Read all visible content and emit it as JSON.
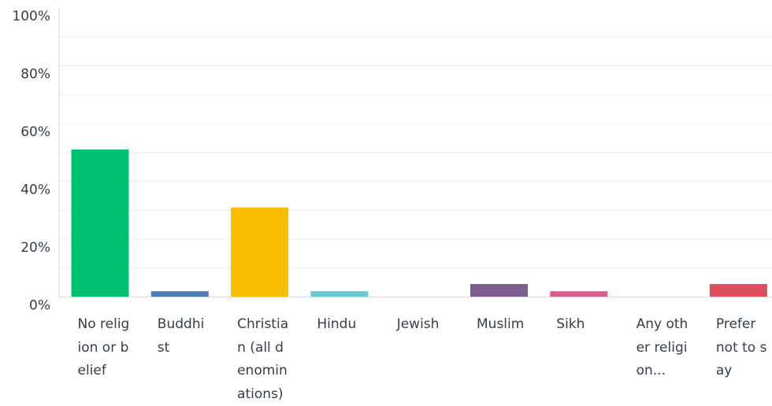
{
  "chart_data": {
    "type": "bar",
    "categories": [
      "No religion or belief",
      "Buddhist",
      "Christian (all denominations)",
      "Hindu",
      "Jewish",
      "Muslim",
      "Sikh",
      "Any other religion...",
      "Prefer not to say"
    ],
    "values": [
      51,
      2,
      31,
      2,
      0,
      4.5,
      2,
      0,
      4.5
    ],
    "colors": [
      "#00bf6f",
      "#507cb6",
      "#f9be00",
      "#6bc8cd",
      "#ff8b4f",
      "#7d5e90",
      "#d25f90",
      "#b4a08c",
      "#dd4f5e"
    ],
    "ylim": [
      0,
      100
    ],
    "yticks": [
      "0%",
      "20%",
      "40%",
      "60%",
      "80%",
      "100%"
    ],
    "grid": true,
    "title": "",
    "xlabel": "",
    "ylabel": ""
  }
}
